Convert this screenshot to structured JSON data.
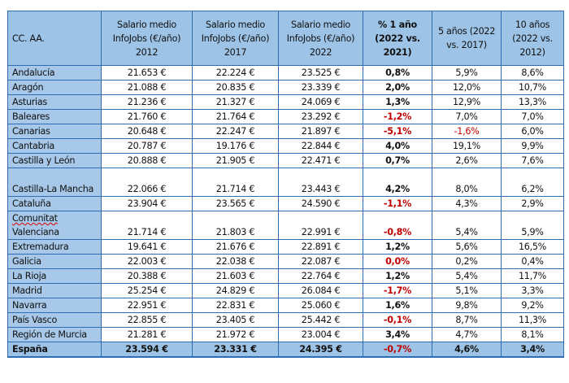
{
  "table": {
    "headers": [
      "CC. AA.",
      "Salario medio InfoJobs (€/año) 2012",
      "Salario medio InfoJobs (€/año) 2017",
      "Salario medio InfoJobs (€/año) 2022",
      "% 1 año (2022 vs. 2021)",
      "5 años (2022 vs. 2017)",
      "10 años (2022 vs. 2012)"
    ],
    "rows": [
      {
        "region": "Andalucía",
        "s2012": "21.653 €",
        "s2017": "22.224 €",
        "s2022": "23.525 €",
        "pct1": "0,8%",
        "pct5": "5,9%",
        "pct10": "8,6%",
        "red": []
      },
      {
        "region": "Aragón",
        "s2012": "21.088 €",
        "s2017": "20.835 €",
        "s2022": "23.339 €",
        "pct1": "2,0%",
        "pct5": "12,0%",
        "pct10": "10,7%",
        "red": []
      },
      {
        "region": "Asturias",
        "s2012": "21.236 €",
        "s2017": "21.327 €",
        "s2022": "24.069 €",
        "pct1": "1,3%",
        "pct5": "12,9%",
        "pct10": "13,3%",
        "red": []
      },
      {
        "region": "Baleares",
        "s2012": "21.760 €",
        "s2017": "21.764 €",
        "s2022": "23.292 €",
        "pct1": "-1,2%",
        "pct5": "7,0%",
        "pct10": "7,0%",
        "red": [
          "pct1"
        ]
      },
      {
        "region": "Canarias",
        "s2012": "20.648 €",
        "s2017": "22.247 €",
        "s2022": "21.897 €",
        "pct1": "-5,1%",
        "pct5": "-1,6%",
        "pct10": "6,0%",
        "red": [
          "pct1",
          "pct5"
        ]
      },
      {
        "region": "Cantabria",
        "s2012": "20.787 €",
        "s2017": "19.176 €",
        "s2022": "22.844 €",
        "pct1": "4,0%",
        "pct5": "19,1%",
        "pct10": "9,9%",
        "red": []
      },
      {
        "region": "Castilla y León",
        "s2012": "20.888 €",
        "s2017": "21.905 €",
        "s2022": "22.471 €",
        "pct1": "0,7%",
        "pct5": "2,6%",
        "pct10": "7,6%",
        "red": []
      },
      {
        "region": "Castilla-La Mancha",
        "s2012": "22.066 €",
        "s2017": "21.714 €",
        "s2022": "23.443 €",
        "pct1": "4,2%",
        "pct5": "8,0%",
        "pct10": "6,2%",
        "red": [],
        "tall": true
      },
      {
        "region": "Cataluña",
        "s2012": "23.904 €",
        "s2017": "23.565 €",
        "s2022": "24.590 €",
        "pct1": "-1,1%",
        "pct5": "4,3%",
        "pct10": "2,9%",
        "red": [
          "pct1"
        ]
      },
      {
        "region": "Comunitat Valenciana",
        "s2012": "21.714 €",
        "s2017": "21.803 €",
        "s2022": "22.991 €",
        "pct1": "-0,8%",
        "pct5": "5,4%",
        "pct10": "5,9%",
        "red": [
          "pct1"
        ],
        "tall": true
      },
      {
        "region": "Extremadura",
        "s2012": "19.641 €",
        "s2017": "21.676 €",
        "s2022": "22.891 €",
        "pct1": "1,2%",
        "pct5": "5,6%",
        "pct10": "16,5%",
        "red": []
      },
      {
        "region": "Galicia",
        "s2012": "22.003 €",
        "s2017": "22.038 €",
        "s2022": "22.087 €",
        "pct1": "0,0%",
        "pct5": "0,2%",
        "pct10": "0,4%",
        "red": [
          "pct1"
        ]
      },
      {
        "region": "La Rioja",
        "s2012": "20.388 €",
        "s2017": "21.603 €",
        "s2022": "22.764 €",
        "pct1": "1,2%",
        "pct5": "5,4%",
        "pct10": "11,7%",
        "red": []
      },
      {
        "region": "Madrid",
        "s2012": "25.254 €",
        "s2017": "24.829 €",
        "s2022": "26.084 €",
        "pct1": "-1,7%",
        "pct5": "5,1%",
        "pct10": "3,3%",
        "red": [
          "pct1"
        ]
      },
      {
        "region": "Navarra",
        "s2012": "22.951 €",
        "s2017": "22.831 €",
        "s2022": "25.060 €",
        "pct1": "1,6%",
        "pct5": "9,8%",
        "pct10": "9,2%",
        "red": []
      },
      {
        "region": "País Vasco",
        "s2012": "22.855 €",
        "s2017": "23.405 €",
        "s2022": "25.442 €",
        "pct1": "-0,1%",
        "pct5": "8,7%",
        "pct10": "11,3%",
        "red": [
          "pct1"
        ]
      },
      {
        "region": "Región de Murcia",
        "s2012": "21.281 €",
        "s2017": "21.972 €",
        "s2022": "23.004 €",
        "pct1": "3,4%",
        "pct5": "4,7%",
        "pct10": "8,1%",
        "red": []
      }
    ],
    "total": {
      "region": "España",
      "s2012": "23.594 €",
      "s2017": "23.331 €",
      "s2022": "24.395 €",
      "pct1": "-0,7%",
      "pct5": "4,6%",
      "pct10": "3,4%",
      "red": [
        "pct1"
      ]
    },
    "colors": {
      "header_bg": "#9dc3e6",
      "border": "#2e6db4",
      "negative": "#c00000"
    }
  }
}
